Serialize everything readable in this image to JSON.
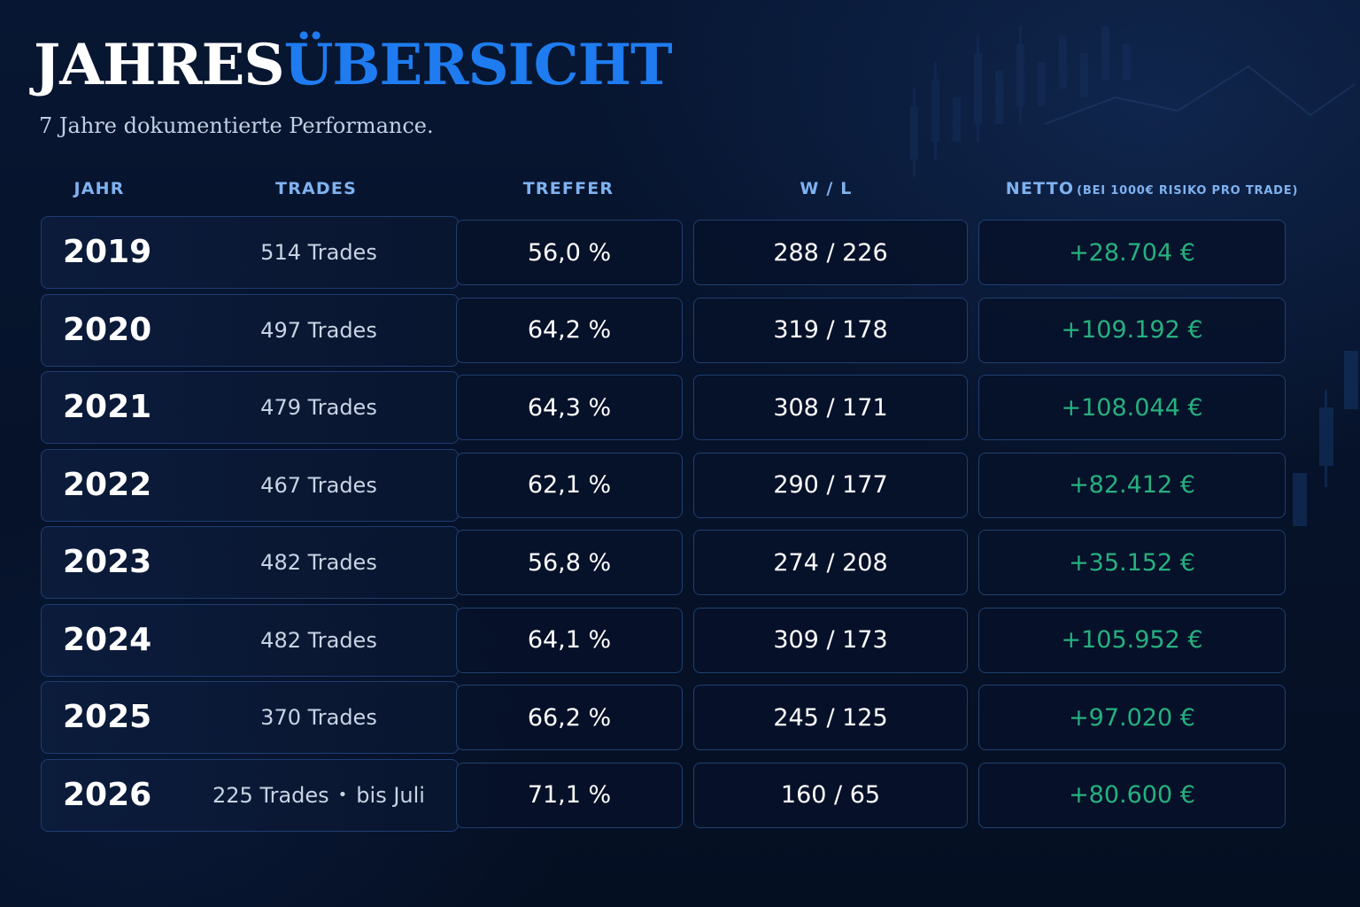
{
  "header": {
    "title_part1": "JAHRES",
    "title_part2": "ÜBERSICHT",
    "subtitle": "7 Jahre dokumentierte Performance."
  },
  "table": {
    "columns": {
      "jahr": "JAHR",
      "trades": "TRADES",
      "treffer": "TREFFER",
      "wl": "W / L",
      "netto": "NETTO",
      "netto_note": "(BEI 1000€ RISIKO PRO TRADE)"
    },
    "rows": [
      {
        "year": "2019",
        "trades": "514 Trades",
        "trades_note": "",
        "treffer": "56,0 %",
        "wl": "288 / 226",
        "netto": "+28.704 €"
      },
      {
        "year": "2020",
        "trades": "497 Trades",
        "trades_note": "",
        "treffer": "64,2 %",
        "wl": "319 / 178",
        "netto": "+109.192 €"
      },
      {
        "year": "2021",
        "trades": "479 Trades",
        "trades_note": "",
        "treffer": "64,3 %",
        "wl": "308 / 171",
        "netto": "+108.044 €"
      },
      {
        "year": "2022",
        "trades": "467 Trades",
        "trades_note": "",
        "treffer": "62,1 %",
        "wl": "290 / 177",
        "netto": "+82.412 €"
      },
      {
        "year": "2023",
        "trades": "482 Trades",
        "trades_note": "",
        "treffer": "56,8 %",
        "wl": "274 / 208",
        "netto": "+35.152 €"
      },
      {
        "year": "2024",
        "trades": "482 Trades",
        "trades_note": "",
        "treffer": "64,1 %",
        "wl": "309 / 173",
        "netto": "+105.952 €"
      },
      {
        "year": "2025",
        "trades": "370 Trades",
        "trades_note": "",
        "treffer": "66,2 %",
        "wl": "245 / 125",
        "netto": "+97.020 €"
      },
      {
        "year": "2026",
        "trades": "225 Trades",
        "trades_note": "bis Juli",
        "treffer": "71,1 %",
        "wl": "160 / 65",
        "netto": "+80.600 €"
      }
    ]
  },
  "colors": {
    "accent_blue": "#1e7cf0",
    "header_blue": "#7fb2f0",
    "positive_green": "#27b07f",
    "background": "#061229"
  }
}
